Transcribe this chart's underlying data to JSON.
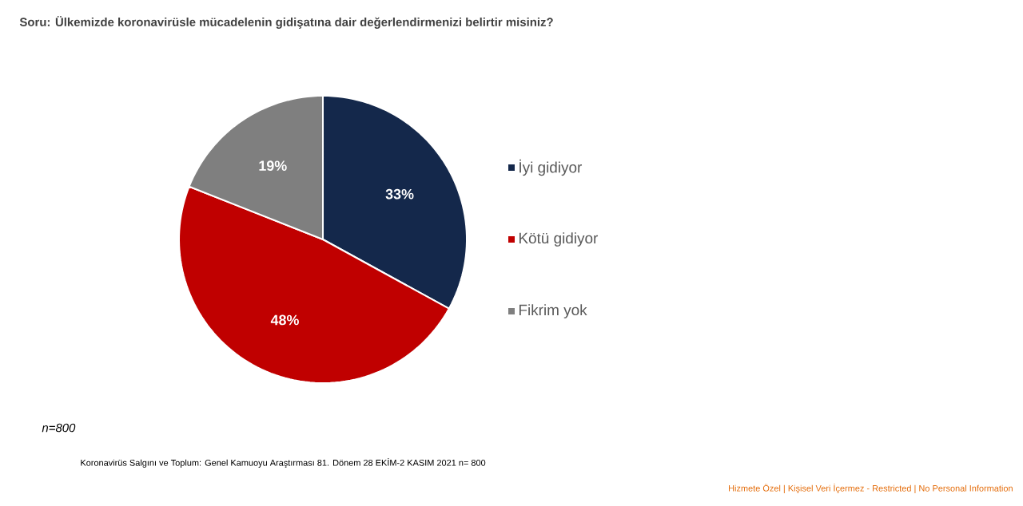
{
  "chart_data": {
    "type": "pie",
    "title": "Soru: Ülkemizde koronavirüsle mücadelenin gidişatına dair değerlendirmenizi belirtir misiniz?",
    "categories": [
      "İyi gidiyor",
      "Kötü gidiyor",
      "Fikrim yok"
    ],
    "values": [
      33,
      48,
      19
    ],
    "colors": [
      "#14284b",
      "#c00000",
      "#7f7f7f"
    ],
    "value_labels": [
      "33%",
      "48%",
      "19%"
    ],
    "legend": "right",
    "annotations": [
      "n=800",
      "Koronavirüs  Salgını ve Toplum:  Genel Kamuoyu Araştırması 81. Dönem  28 EKİM-2 KASIM  2021   n= 800",
      "Hizmete Özel | Kişisel Veri İçermez - Restricted | No Personal Information"
    ]
  }
}
